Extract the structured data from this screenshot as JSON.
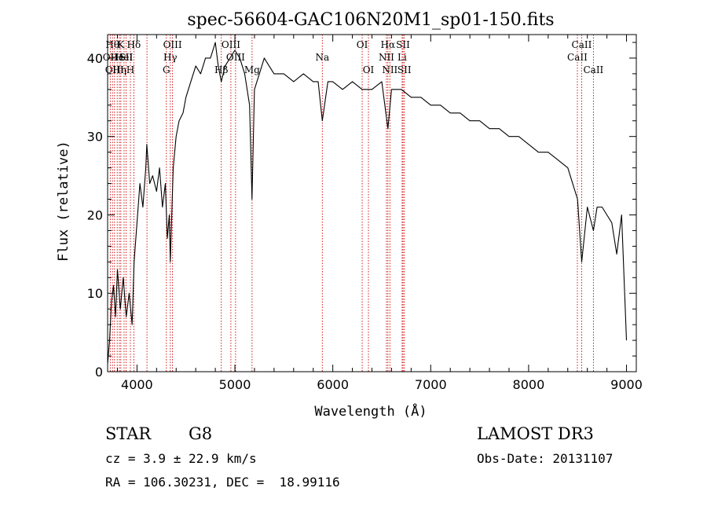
{
  "chart_data": {
    "type": "line",
    "title": "spec-56604-GAC106N20M1_sp01-150.fits",
    "xlabel": "Wavelength (Å)",
    "ylabel": "Flux (relative)",
    "xlim": [
      3700,
      9100
    ],
    "ylim": [
      0,
      43
    ],
    "x_ticks": [
      4000,
      5000,
      6000,
      7000,
      8000,
      9000
    ],
    "y_ticks": [
      0,
      10,
      20,
      30,
      40
    ],
    "grid": false,
    "legend": "none",
    "series": [
      {
        "line_color": "#000000",
        "points": [
          [
            3700,
            1
          ],
          [
            3720,
            4
          ],
          [
            3740,
            9
          ],
          [
            3760,
            11
          ],
          [
            3780,
            7
          ],
          [
            3800,
            13
          ],
          [
            3830,
            8
          ],
          [
            3860,
            12
          ],
          [
            3890,
            7
          ],
          [
            3920,
            10
          ],
          [
            3950,
            6
          ],
          [
            3970,
            14
          ],
          [
            4000,
            19
          ],
          [
            4030,
            24
          ],
          [
            4060,
            21
          ],
          [
            4090,
            26
          ],
          [
            4100,
            29
          ],
          [
            4130,
            24
          ],
          [
            4160,
            25
          ],
          [
            4200,
            23
          ],
          [
            4230,
            26
          ],
          [
            4260,
            21
          ],
          [
            4290,
            24
          ],
          [
            4310,
            17
          ],
          [
            4330,
            20
          ],
          [
            4340,
            14
          ],
          [
            4370,
            26
          ],
          [
            4400,
            30
          ],
          [
            4430,
            32
          ],
          [
            4470,
            33
          ],
          [
            4500,
            35
          ],
          [
            4550,
            37
          ],
          [
            4600,
            39
          ],
          [
            4650,
            38
          ],
          [
            4700,
            40
          ],
          [
            4750,
            40
          ],
          [
            4800,
            42
          ],
          [
            4830,
            39
          ],
          [
            4861,
            37
          ],
          [
            4900,
            39
          ],
          [
            4950,
            40
          ],
          [
            5000,
            41
          ],
          [
            5050,
            40
          ],
          [
            5100,
            38
          ],
          [
            5150,
            34
          ],
          [
            5175,
            22
          ],
          [
            5200,
            36
          ],
          [
            5250,
            38
          ],
          [
            5300,
            40
          ],
          [
            5350,
            39
          ],
          [
            5400,
            38
          ],
          [
            5500,
            38
          ],
          [
            5600,
            37
          ],
          [
            5700,
            38
          ],
          [
            5800,
            37
          ],
          [
            5850,
            37
          ],
          [
            5893,
            32
          ],
          [
            5950,
            37
          ],
          [
            6000,
            37
          ],
          [
            6100,
            36
          ],
          [
            6200,
            37
          ],
          [
            6300,
            36
          ],
          [
            6400,
            36
          ],
          [
            6500,
            37
          ],
          [
            6563,
            31
          ],
          [
            6600,
            36
          ],
          [
            6700,
            36
          ],
          [
            6800,
            35
          ],
          [
            6900,
            35
          ],
          [
            7000,
            34
          ],
          [
            7100,
            34
          ],
          [
            7200,
            33
          ],
          [
            7300,
            33
          ],
          [
            7400,
            32
          ],
          [
            7500,
            32
          ],
          [
            7600,
            31
          ],
          [
            7700,
            31
          ],
          [
            7800,
            30
          ],
          [
            7900,
            30
          ],
          [
            8000,
            29
          ],
          [
            8100,
            28
          ],
          [
            8200,
            28
          ],
          [
            8300,
            27
          ],
          [
            8400,
            26
          ],
          [
            8450,
            24
          ],
          [
            8500,
            22
          ],
          [
            8542,
            14
          ],
          [
            8600,
            21
          ],
          [
            8662,
            18
          ],
          [
            8700,
            21
          ],
          [
            8750,
            21
          ],
          [
            8800,
            20
          ],
          [
            8850,
            19
          ],
          [
            8900,
            15
          ],
          [
            8950,
            20
          ],
          [
            9000,
            4
          ]
        ]
      }
    ],
    "lines": {
      "color": "#cc0000",
      "items": [
        {
          "x": 3750,
          "label": "Hθ",
          "row": 0
        },
        {
          "x": 3727,
          "label": "OII",
          "row": 1
        },
        {
          "x": 3770,
          "label": "OIII",
          "row": 2
        },
        {
          "x": 3798,
          "label": "He",
          "row": 1
        },
        {
          "x": 3820,
          "label": "Hη",
          "row": 2
        },
        {
          "x": 3835,
          "label": "K",
          "row": 0
        },
        {
          "x": 3868,
          "label": "HeI",
          "row": 1
        },
        {
          "x": 3889,
          "label": "SII",
          "row": 1
        },
        {
          "x": 3933,
          "label": "H",
          "row": 2
        },
        {
          "x": 3968,
          "label": "Hδ",
          "row": 0
        },
        {
          "x": 4102,
          "label": "",
          "row": 0
        },
        {
          "x": 4300,
          "label": "G",
          "row": 2
        },
        {
          "x": 4340,
          "label": "Hγ",
          "row": 1
        },
        {
          "x": 4363,
          "label": "OIII",
          "row": 0
        },
        {
          "x": 4861,
          "label": "Hβ",
          "row": 2
        },
        {
          "x": 4959,
          "label": "OIII",
          "row": 0
        },
        {
          "x": 5007,
          "label": "OIII",
          "row": 1
        },
        {
          "x": 5175,
          "label": "Mg",
          "row": 2
        },
        {
          "x": 5893,
          "label": "Na",
          "row": 1
        },
        {
          "x": 6300,
          "label": "OI",
          "row": 0
        },
        {
          "x": 6364,
          "label": "OI",
          "row": 2
        },
        {
          "x": 6548,
          "label": "NII",
          "row": 1
        },
        {
          "x": 6563,
          "label": "Hα",
          "row": 0
        },
        {
          "x": 6583,
          "label": "NII",
          "row": 2
        },
        {
          "x": 6708,
          "label": "Li",
          "row": 1
        },
        {
          "x": 6717,
          "label": "SII",
          "row": 0
        },
        {
          "x": 6731,
          "label": "SII",
          "row": 2
        },
        {
          "x": 8498,
          "label": "CaII",
          "row": 1
        },
        {
          "x": 8542,
          "label": "CaII",
          "row": 0
        },
        {
          "x": 8662,
          "label": "CaII",
          "row": 2
        }
      ]
    }
  },
  "info": {
    "class": "STAR",
    "subclass": "G8",
    "survey": "LAMOST DR3",
    "cz": "cz = 3.9 ± 22.9 km/s",
    "obs_date": "Obs-Date: 20131107",
    "coords": "RA = 106.30231, DEC =  18.99116"
  }
}
